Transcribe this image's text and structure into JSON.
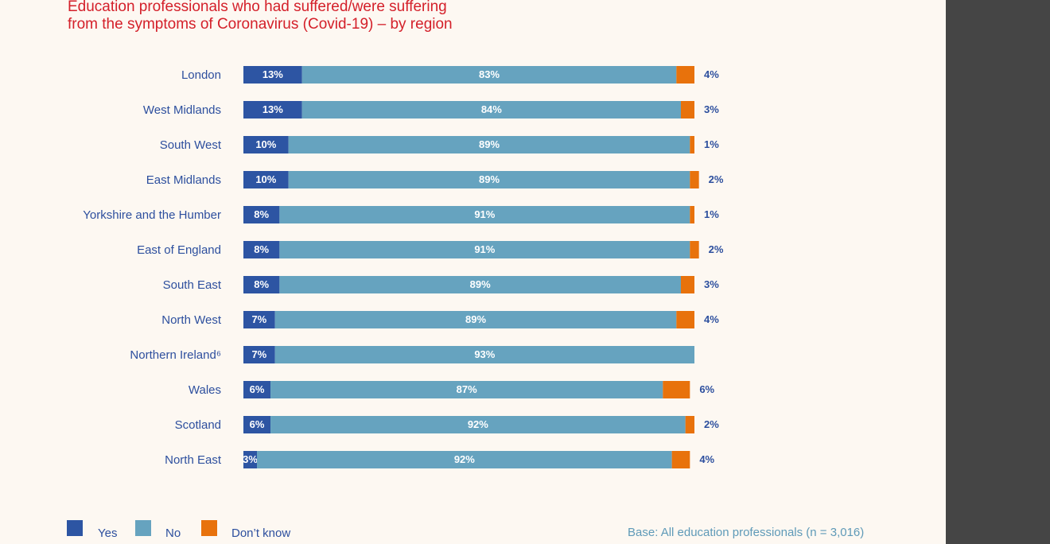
{
  "title_lines": [
    "Education professionals who had suffered/were suffering",
    "from the symptoms of Coronavirus (Covid-19) – by region"
  ],
  "base_note": "Base: All education professionals (n = 3,016)",
  "colors": {
    "yes": "#2d55a3",
    "no": "#66a3bf",
    "dont_know": "#e8720c",
    "label_text": "#2d4f9e",
    "title": "#d4202a",
    "background": "#fdf8f2"
  },
  "chart_data": {
    "type": "bar",
    "orientation": "horizontal",
    "stacked": true,
    "title": "Education professionals who had suffered/were suffering from the symptoms of Coronavirus (Covid-19) – by region",
    "categories": [
      "London",
      "West Midlands",
      "South West",
      "East Midlands",
      "Yorkshire and the Humber",
      "East of England",
      "South East",
      "North West",
      "Northern Ireland⁶",
      "Wales",
      "Scotland",
      "North East"
    ],
    "series": [
      {
        "name": "Yes",
        "values": [
          13,
          13,
          10,
          10,
          8,
          8,
          8,
          7,
          7,
          6,
          6,
          3
        ]
      },
      {
        "name": "No",
        "values": [
          83,
          84,
          89,
          89,
          91,
          91,
          89,
          89,
          93,
          87,
          92,
          92
        ]
      },
      {
        "name": "Don’t know",
        "values": [
          4,
          3,
          1,
          2,
          1,
          2,
          3,
          4,
          null,
          6,
          2,
          4
        ]
      }
    ],
    "value_suffix": "%",
    "legend_position": "bottom-left",
    "grid": false
  }
}
